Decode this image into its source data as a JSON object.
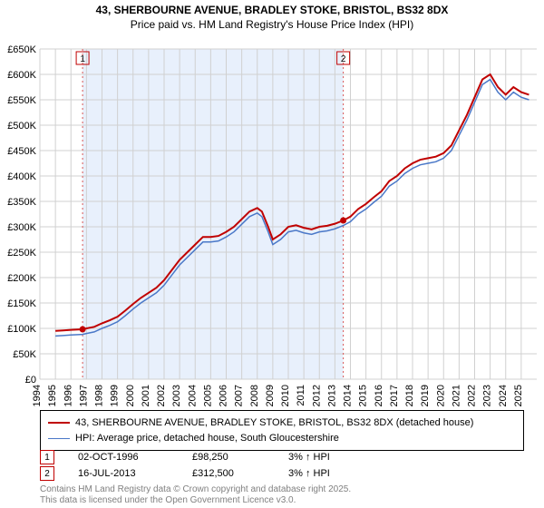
{
  "title_line1": "43, SHERBOURNE AVENUE, BRADLEY STOKE, BRISTOL, BS32 8DX",
  "title_line2": "Price paid vs. HM Land Registry's House Price Index (HPI)",
  "chart": {
    "type": "line",
    "x_start": 1994,
    "x_end": 2026,
    "ylim": [
      0,
      650000
    ],
    "ytick_step": 50000,
    "yticks": [
      "£0",
      "£50K",
      "£100K",
      "£150K",
      "£200K",
      "£250K",
      "£300K",
      "£350K",
      "£400K",
      "£450K",
      "£500K",
      "£550K",
      "£600K",
      "£650K"
    ],
    "xticks": [
      1994,
      1995,
      1996,
      1997,
      1998,
      1999,
      2000,
      2001,
      2002,
      2003,
      2004,
      2005,
      2006,
      2007,
      2008,
      2009,
      2010,
      2011,
      2012,
      2013,
      2014,
      2015,
      2016,
      2017,
      2018,
      2019,
      2020,
      2021,
      2022,
      2023,
      2024,
      2025
    ],
    "band": {
      "from": 1996.75,
      "to": 2013.54,
      "color": "#e8f0fc"
    },
    "series1_color": "#c00000",
    "series2_color": "#4a78c8",
    "background": "#ffffff",
    "grid_color": "#d0d0d0",
    "series1": [
      [
        1995.0,
        95000
      ],
      [
        1995.5,
        96000
      ],
      [
        1996.0,
        97000
      ],
      [
        1996.75,
        98250
      ],
      [
        1997.0,
        100000
      ],
      [
        1997.5,
        103000
      ],
      [
        1998.0,
        110000
      ],
      [
        1998.5,
        116000
      ],
      [
        1999.0,
        123000
      ],
      [
        1999.5,
        135000
      ],
      [
        2000.0,
        148000
      ],
      [
        2000.5,
        160000
      ],
      [
        2001.0,
        170000
      ],
      [
        2001.5,
        180000
      ],
      [
        2002.0,
        195000
      ],
      [
        2002.5,
        215000
      ],
      [
        2003.0,
        235000
      ],
      [
        2003.5,
        250000
      ],
      [
        2004.0,
        265000
      ],
      [
        2004.5,
        280000
      ],
      [
        2005.0,
        280000
      ],
      [
        2005.5,
        282000
      ],
      [
        2006.0,
        290000
      ],
      [
        2006.5,
        300000
      ],
      [
        2007.0,
        315000
      ],
      [
        2007.5,
        330000
      ],
      [
        2008.0,
        337000
      ],
      [
        2008.3,
        330000
      ],
      [
        2008.7,
        300000
      ],
      [
        2009.0,
        275000
      ],
      [
        2009.5,
        285000
      ],
      [
        2010.0,
        300000
      ],
      [
        2010.5,
        303000
      ],
      [
        2011.0,
        298000
      ],
      [
        2011.5,
        295000
      ],
      [
        2012.0,
        300000
      ],
      [
        2012.5,
        302000
      ],
      [
        2013.0,
        306000
      ],
      [
        2013.54,
        312500
      ],
      [
        2014.0,
        320000
      ],
      [
        2014.5,
        335000
      ],
      [
        2015.0,
        345000
      ],
      [
        2015.5,
        358000
      ],
      [
        2016.0,
        370000
      ],
      [
        2016.5,
        390000
      ],
      [
        2017.0,
        400000
      ],
      [
        2017.5,
        415000
      ],
      [
        2018.0,
        425000
      ],
      [
        2018.5,
        432000
      ],
      [
        2019.0,
        435000
      ],
      [
        2019.5,
        438000
      ],
      [
        2020.0,
        445000
      ],
      [
        2020.5,
        460000
      ],
      [
        2021.0,
        490000
      ],
      [
        2021.5,
        520000
      ],
      [
        2022.0,
        555000
      ],
      [
        2022.5,
        590000
      ],
      [
        2023.0,
        600000
      ],
      [
        2023.5,
        575000
      ],
      [
        2024.0,
        560000
      ],
      [
        2024.5,
        575000
      ],
      [
        2025.0,
        565000
      ],
      [
        2025.5,
        560000
      ]
    ],
    "series2_offset": -10000,
    "markers": [
      {
        "idx": "1",
        "x": 1996.75,
        "y": 98250
      },
      {
        "idx": "2",
        "x": 2013.54,
        "y": 312500
      }
    ]
  },
  "legend": {
    "s1": "43, SHERBOURNE AVENUE, BRADLEY STOKE, BRISTOL, BS32 8DX (detached house)",
    "s2": "HPI: Average price, detached house, South Gloucestershire"
  },
  "transactions": [
    {
      "idx": "1",
      "date": "02-OCT-1996",
      "price": "£98,250",
      "diff": "3% ↑ HPI"
    },
    {
      "idx": "2",
      "date": "16-JUL-2013",
      "price": "£312,500",
      "diff": "3% ↑ HPI"
    }
  ],
  "footer1": "Contains HM Land Registry data © Crown copyright and database right 2025.",
  "footer2": "This data is licensed under the Open Government Licence v3.0."
}
